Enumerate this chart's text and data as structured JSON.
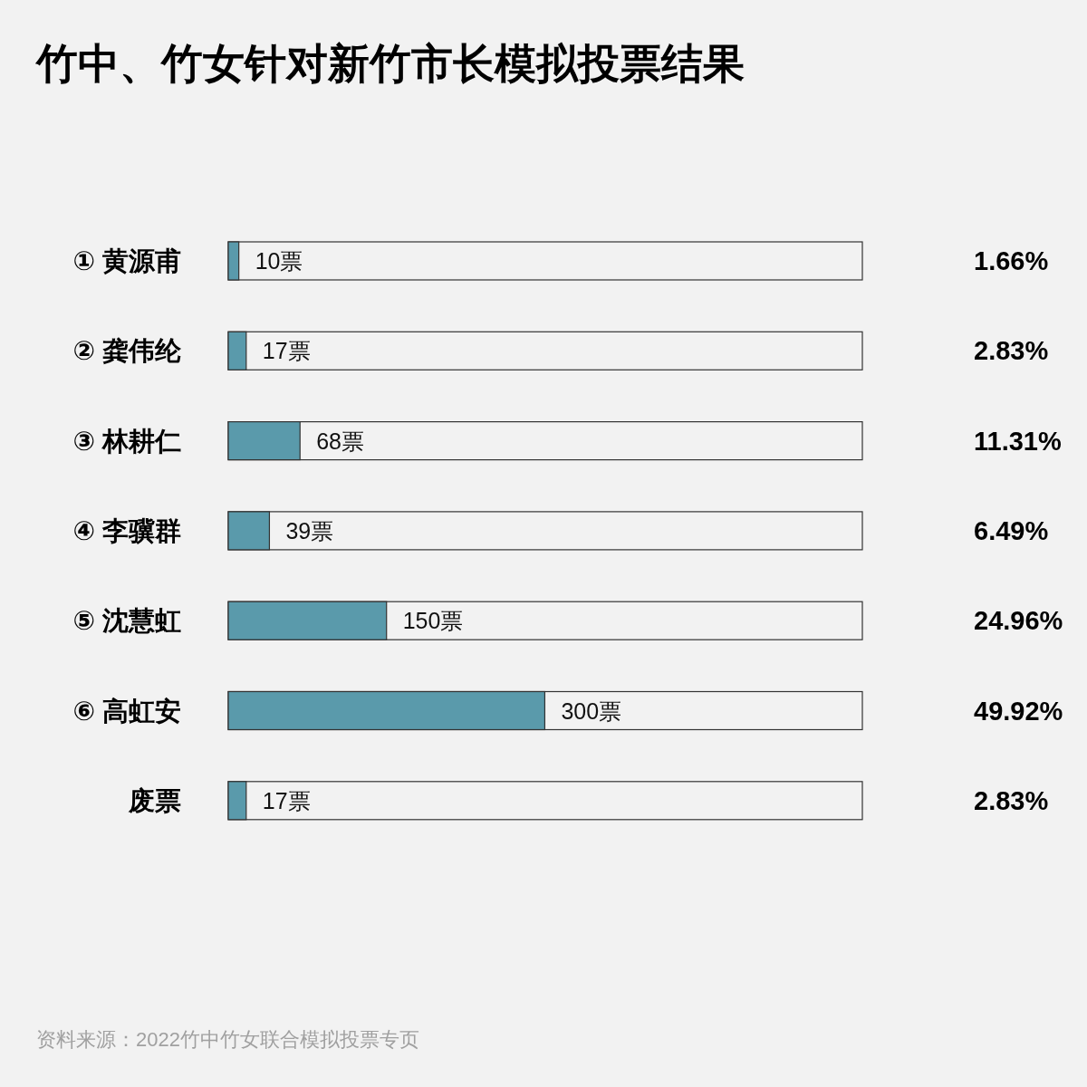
{
  "chart_data": {
    "type": "bar",
    "orientation": "horizontal",
    "title": "竹中、竹女针对新竹市长模拟投票结果",
    "categories": [
      "① 黄源甫",
      "② 龚伟纶",
      "③ 林耕仁",
      "④ 李骥群",
      "⑤ 沈慧虹",
      "⑥ 高虹安",
      "废票"
    ],
    "values": [
      10,
      17,
      68,
      39,
      150,
      300,
      17
    ],
    "value_labels": [
      "10票",
      "17票",
      "68票",
      "39票",
      "150票",
      "300票",
      "17票"
    ],
    "color": "#5a9aab",
    "xlim": [
      0,
      601
    ],
    "tick_labels": "y",
    "annotations": [
      "1.66%",
      "2.83%",
      "11.31%",
      "6.49%",
      "24.96%",
      "49.92%",
      "2.83%",
      "资料来源：2022竹中竹女联合模拟投票专页"
    ]
  }
}
